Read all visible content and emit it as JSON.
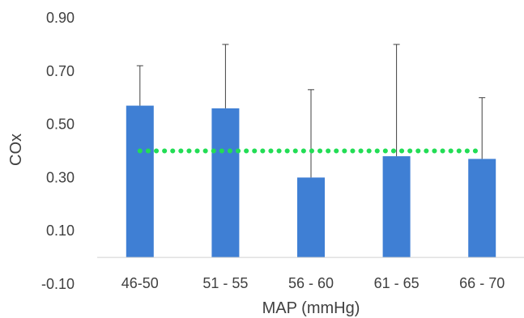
{
  "chart_data": {
    "type": "bar",
    "title": "",
    "xlabel": "MAP (mmHg)",
    "ylabel": "COx",
    "categories": [
      "46-50",
      "51 - 55",
      "56 - 60",
      "61 - 65",
      "66 - 70"
    ],
    "values": [
      0.57,
      0.56,
      0.3,
      0.38,
      0.37
    ],
    "error_upper": [
      0.15,
      0.24,
      0.33,
      0.42,
      0.23
    ],
    "yticks": [
      -0.1,
      0.1,
      0.3,
      0.5,
      0.7,
      0.9
    ],
    "ytick_labels": [
      "-0.10",
      "0.10",
      "0.30",
      "0.50",
      "0.70",
      "0.90"
    ],
    "ylim": [
      -0.1,
      0.9
    ],
    "reference_line": {
      "value": 0.4,
      "style": "dotted",
      "color": "#22dd55"
    },
    "bar_color": "#3f7fd4",
    "error_bar_color": "#404040",
    "grid": false,
    "legend": "none"
  }
}
